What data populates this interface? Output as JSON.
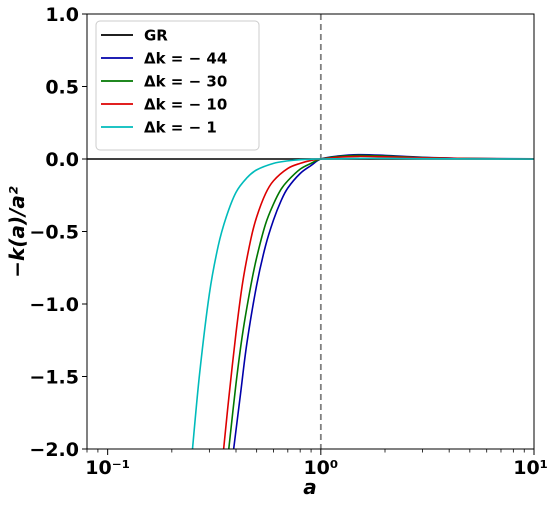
{
  "chart_data": {
    "type": "line",
    "xlabel": "a",
    "ylabel": "−k(a)/a²",
    "xscale": "log",
    "xlim": [
      0.08,
      10
    ],
    "ylim": [
      -2.0,
      1.0
    ],
    "grid": false,
    "legend_position": "top-left",
    "x_ticks": [
      {
        "value": 0.1,
        "label": "10⁻¹"
      },
      {
        "value": 1,
        "label": "10⁰"
      },
      {
        "value": 10,
        "label": "10¹"
      }
    ],
    "y_ticks": [
      {
        "value": 1.0,
        "label": "1.0"
      },
      {
        "value": 0.5,
        "label": "0.5"
      },
      {
        "value": 0.0,
        "label": "0.0"
      },
      {
        "value": -0.5,
        "label": "−0.5"
      },
      {
        "value": -1.0,
        "label": "−1.0"
      },
      {
        "value": -1.5,
        "label": "−1.5"
      },
      {
        "value": -2.0,
        "label": "−2.0"
      }
    ],
    "vertical_line": {
      "x": 1.0,
      "style": "dashed",
      "color": "#808080"
    },
    "series": [
      {
        "name": "GR",
        "color": "#000000",
        "x": [
          0.08,
          10
        ],
        "y": [
          0,
          0
        ]
      },
      {
        "name": "Δk = − 44",
        "color": "#0000aa",
        "x": [
          0.39,
          0.42,
          0.45,
          0.5,
          0.55,
          0.6,
          0.65,
          0.7,
          0.8,
          0.9,
          1.0,
          1.2,
          1.5,
          2.0,
          3.0,
          5.0,
          10.0
        ],
        "y": [
          -2.0,
          -1.62,
          -1.27,
          -0.87,
          -0.6,
          -0.42,
          -0.29,
          -0.2,
          -0.1,
          -0.045,
          0.0,
          0.02,
          0.03,
          0.025,
          0.012,
          0.004,
          0.001
        ]
      },
      {
        "name": "Δk = − 30",
        "color": "#007700",
        "x": [
          0.37,
          0.4,
          0.43,
          0.47,
          0.5,
          0.55,
          0.6,
          0.65,
          0.7,
          0.8,
          0.9,
          1.0,
          1.2,
          1.5,
          2.0,
          3.0,
          5.0,
          10.0
        ],
        "y": [
          -2.0,
          -1.55,
          -1.2,
          -0.87,
          -0.68,
          -0.45,
          -0.31,
          -0.21,
          -0.15,
          -0.07,
          -0.03,
          0.0,
          0.017,
          0.025,
          0.02,
          0.01,
          0.003,
          0.001
        ]
      },
      {
        "name": "Δk = − 10",
        "color": "#dd0000",
        "x": [
          0.35,
          0.37,
          0.4,
          0.43,
          0.47,
          0.5,
          0.55,
          0.6,
          0.7,
          0.8,
          0.9,
          1.0,
          1.2,
          1.5,
          2.0,
          3.0,
          5.0,
          10.0
        ],
        "y": [
          -2.0,
          -1.65,
          -1.2,
          -0.85,
          -0.55,
          -0.4,
          -0.24,
          -0.15,
          -0.065,
          -0.03,
          -0.01,
          0.0,
          0.012,
          0.018,
          0.015,
          0.008,
          0.003,
          0.001
        ]
      },
      {
        "name": "Δk = − 1",
        "color": "#00bbbb",
        "x": [
          0.25,
          0.27,
          0.3,
          0.33,
          0.36,
          0.4,
          0.45,
          0.5,
          0.6,
          0.7,
          0.8,
          1.0,
          1.5,
          2.0,
          3.0,
          10.0
        ],
        "y": [
          -2.0,
          -1.48,
          -0.93,
          -0.6,
          -0.4,
          -0.23,
          -0.13,
          -0.075,
          -0.03,
          -0.013,
          -0.005,
          0.0,
          0.004,
          0.004,
          0.002,
          0.0
        ]
      }
    ]
  }
}
